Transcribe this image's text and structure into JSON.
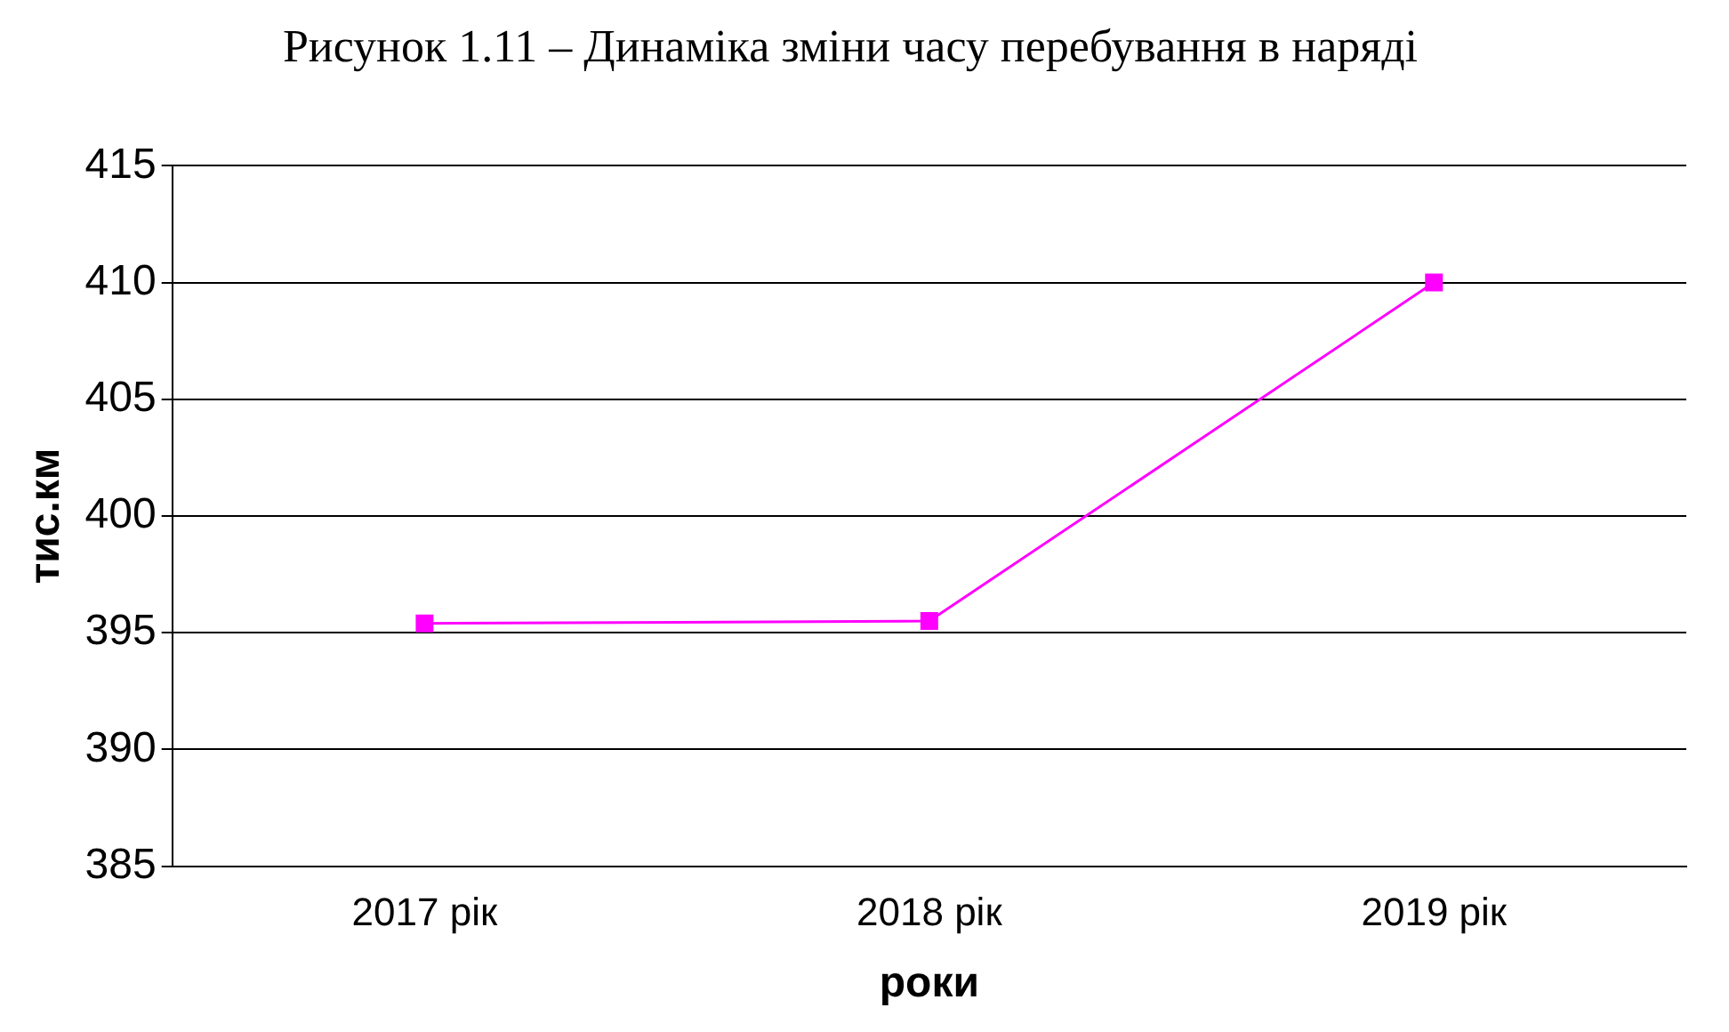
{
  "chart_data": {
    "type": "line",
    "title": "Рисунок 1.11 – Динаміка зміни часу перебування в наряді",
    "xlabel": "роки",
    "ylabel": "тис.км",
    "categories": [
      "2017 рік",
      "2018 рік",
      "2019 рік"
    ],
    "series": [
      {
        "color": "#ff00ff",
        "values": [
          395.4,
          395.5,
          410
        ]
      }
    ],
    "ylim": [
      385,
      415
    ],
    "yticks": [
      385,
      390,
      395,
      400,
      405,
      410,
      415
    ],
    "grid": "y",
    "legend": false,
    "marker": "square",
    "line_style": "solid"
  }
}
